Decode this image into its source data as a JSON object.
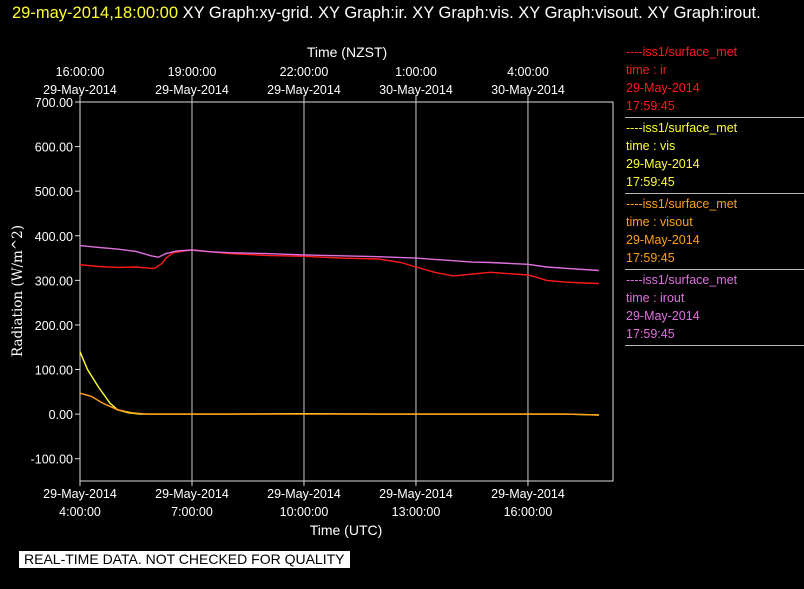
{
  "title": {
    "timestamp": "29-may-2014,18:00:00",
    "rest": "XY Graph:xy-grid.  XY Graph:ir.  XY Graph:vis.  XY Graph:visout.  XY Graph:irout."
  },
  "legend": [
    {
      "line1": "----iss1/surface_met",
      "line2": "time : ir",
      "line3": "29-May-2014",
      "line4": "17:59:45",
      "color": "#ff1a1a"
    },
    {
      "line1": "----iss1/surface_met",
      "line2": "time : vis",
      "line3": "29-May-2014",
      "line4": "17:59:45",
      "color": "#ffff33"
    },
    {
      "line1": "----iss1/surface_met",
      "line2": "time : visout",
      "line3": "29-May-2014",
      "line4": "17:59:45",
      "color": "#ff9f1a"
    },
    {
      "line1": "----iss1/surface_met",
      "line2": "time : irout",
      "line3": "29-May-2014",
      "line4": "17:59:45",
      "color": "#e070e0"
    }
  ],
  "disclaimer": "REAL-TIME DATA. NOT CHECKED FOR QUALITY",
  "chart_data": {
    "type": "line",
    "xlabel": "Time (UTC)",
    "ylabel": "Radiation (W/m^2)",
    "top_axis_label": "Time (NZST)",
    "ylim": [
      -150,
      700
    ],
    "yticks": [
      700,
      600,
      500,
      400,
      300,
      200,
      100,
      0,
      -100
    ],
    "ytick_labels": [
      "700.00",
      "600.00",
      "500.00",
      "400.00",
      "300.00",
      "200.00",
      "100.00",
      "0.00",
      "-100.00"
    ],
    "xlim_hours_utc": [
      4.0,
      18.0
    ],
    "x_ticks": [
      {
        "hour": 4,
        "date": "29-May-2014",
        "time": "4:00:00"
      },
      {
        "hour": 7,
        "date": "29-May-2014",
        "time": "7:00:00"
      },
      {
        "hour": 10,
        "date": "29-May-2014",
        "time": "10:00:00"
      },
      {
        "hour": 13,
        "date": "29-May-2014",
        "time": "13:00:00"
      },
      {
        "hour": 16,
        "date": "29-May-2014",
        "time": "16:00:00"
      }
    ],
    "x_ticks_top": [
      {
        "hour": 4,
        "time": "16:00:00",
        "date": "29-May-2014"
      },
      {
        "hour": 7,
        "time": "19:00:00",
        "date": "29-May-2014"
      },
      {
        "hour": 10,
        "time": "22:00:00",
        "date": "29-May-2014"
      },
      {
        "hour": 13,
        "time": "1:00:00",
        "date": "30-May-2014"
      },
      {
        "hour": 16,
        "time": "4:00:00",
        "date": "30-May-2014"
      }
    ],
    "grid": "vertical",
    "series": [
      {
        "name": "time : ir",
        "color": "#ff1a1a",
        "x": [
          4.0,
          4.5,
          5.0,
          5.5,
          5.9,
          6.0,
          6.2,
          6.3,
          6.5,
          6.8,
          7.0,
          7.5,
          8.0,
          9.0,
          10.0,
          11.0,
          12.0,
          12.6,
          13.0,
          13.5,
          14.0,
          14.5,
          15.0,
          15.5,
          16.0,
          16.3,
          16.5,
          17.0,
          17.5,
          17.9
        ],
        "values": [
          335,
          331,
          329,
          330,
          327,
          327,
          338,
          350,
          362,
          366,
          368,
          364,
          360,
          356,
          354,
          350,
          348,
          340,
          330,
          318,
          310,
          314,
          318,
          315,
          312,
          305,
          300,
          296,
          294,
          293
        ]
      },
      {
        "name": "time : vis",
        "color": "#ffff33",
        "x": [
          4.0,
          4.2,
          4.5,
          4.8,
          5.0,
          5.3,
          5.6,
          6.0,
          7.0,
          8.0,
          10.0,
          12.0,
          14.0,
          16.0,
          17.0,
          17.9
        ],
        "values": [
          140,
          100,
          60,
          25,
          10,
          3,
          0,
          0,
          0,
          0,
          1,
          0,
          0,
          0,
          0,
          -2
        ]
      },
      {
        "name": "time : visout",
        "color": "#ff9f1a",
        "x": [
          4.0,
          4.3,
          4.6,
          5.0,
          5.4,
          5.8,
          6.5,
          8.0,
          10.0,
          12.0,
          14.0,
          16.0,
          17.0,
          17.9
        ],
        "values": [
          47,
          40,
          25,
          10,
          3,
          0,
          0,
          0,
          0,
          0,
          0,
          0,
          0,
          -2
        ]
      },
      {
        "name": "time : irout",
        "color": "#e070e0",
        "x": [
          4.0,
          4.5,
          5.0,
          5.5,
          5.9,
          6.1,
          6.3,
          6.6,
          7.0,
          7.5,
          8.0,
          9.0,
          10.0,
          11.0,
          12.0,
          13.0,
          13.5,
          14.0,
          14.5,
          15.0,
          15.5,
          16.0,
          16.5,
          17.0,
          17.9
        ],
        "values": [
          378,
          374,
          370,
          365,
          355,
          352,
          360,
          366,
          368,
          364,
          362,
          360,
          357,
          355,
          353,
          350,
          347,
          344,
          341,
          340,
          338,
          336,
          330,
          327,
          322
        ]
      }
    ]
  }
}
